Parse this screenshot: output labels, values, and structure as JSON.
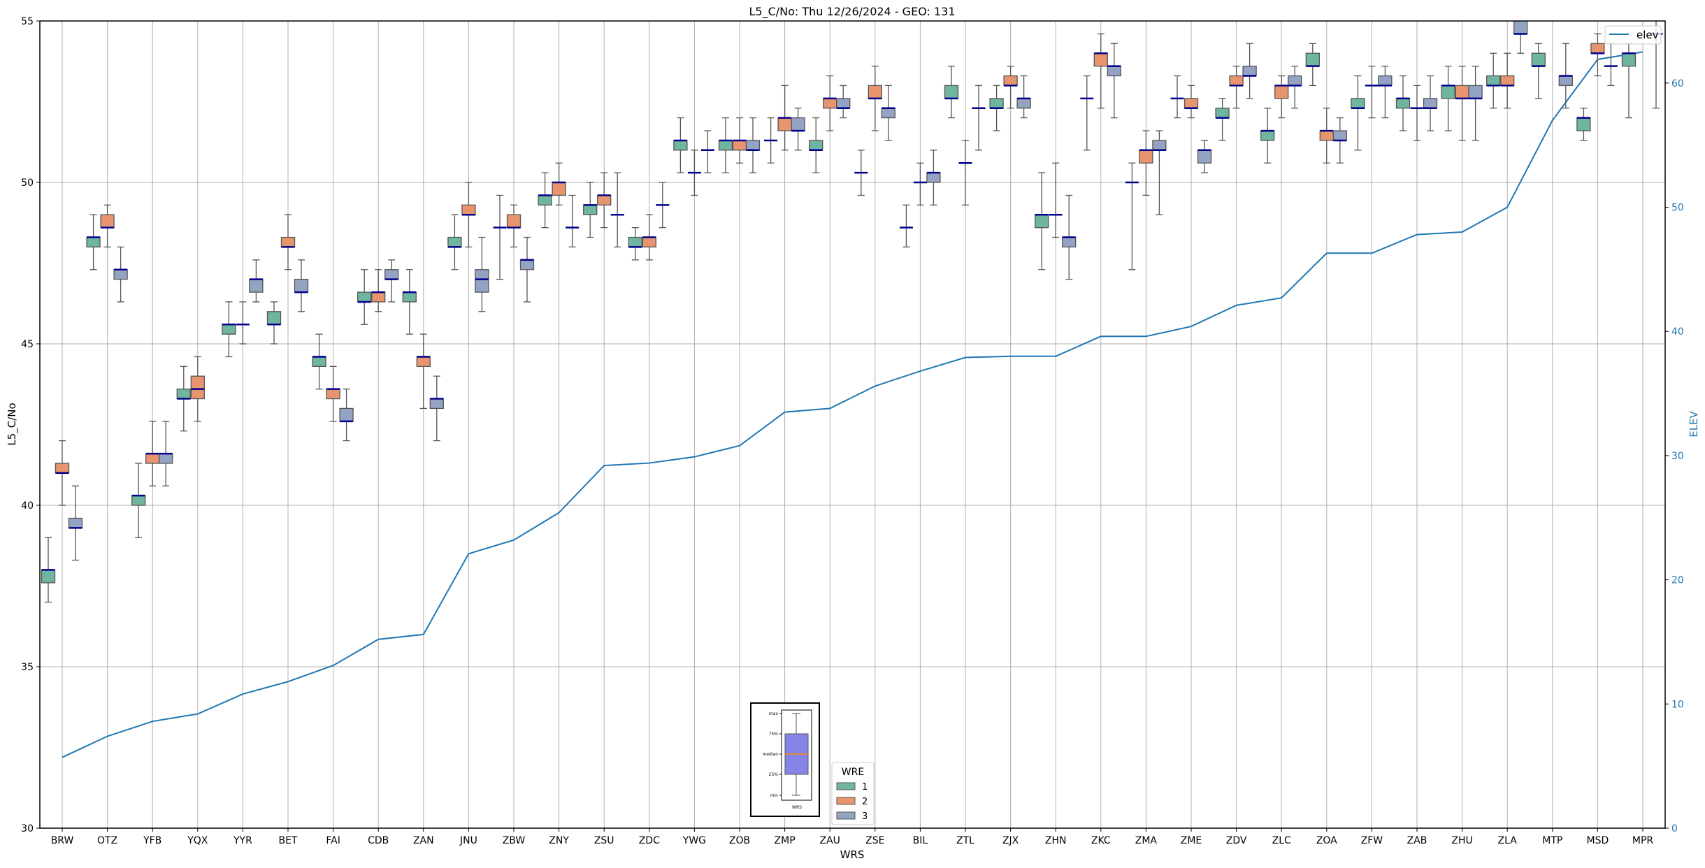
{
  "chart_data": {
    "type": "box",
    "title": "L5_C/No: Thu 12/26/2024 - GEO: 131",
    "xlabel": "WRS",
    "ylabel": "L5_C/No",
    "y2label": "ELEV",
    "ylim": [
      30,
      55
    ],
    "y2lim": [
      0,
      64
    ],
    "y_ticks": [
      "30",
      "35",
      "40",
      "45",
      "50",
      "55"
    ],
    "y2_ticks": [
      "0",
      "10",
      "20",
      "30",
      "40",
      "50",
      "60"
    ],
    "grid": true,
    "categories": [
      "BRW",
      "OTZ",
      "YFB",
      "YQX",
      "YYR",
      "BET",
      "FAI",
      "CDB",
      "ZAN",
      "JNU",
      "ZBW",
      "ZNY",
      "ZSU",
      "ZDC",
      "YWG",
      "ZOB",
      "ZMP",
      "ZAU",
      "ZSE",
      "BIL",
      "ZTL",
      "ZJX",
      "ZHN",
      "ZKC",
      "ZMA",
      "ZME",
      "ZDV",
      "ZLC",
      "ZOA",
      "ZFW",
      "ZAB",
      "ZHU",
      "ZLA",
      "MTP",
      "MSD",
      "MPR"
    ],
    "box_fields": [
      "wre",
      "min",
      "q1",
      "median",
      "q3",
      "max"
    ],
    "boxes": [
      [
        [
          1,
          37.0,
          37.6,
          38.0,
          38.0,
          39.0
        ],
        [
          2,
          40.0,
          41.0,
          41.0,
          41.3,
          42.0
        ],
        [
          3,
          38.3,
          39.3,
          39.3,
          39.6,
          40.6
        ]
      ],
      [
        [
          1,
          47.3,
          48.0,
          48.3,
          48.3,
          49.0
        ],
        [
          2,
          48.0,
          48.6,
          48.6,
          49.0,
          49.3
        ],
        [
          3,
          46.3,
          47.0,
          47.3,
          47.3,
          48.0
        ]
      ],
      [
        [
          1,
          39.0,
          40.0,
          40.3,
          40.3,
          41.3
        ],
        [
          2,
          40.6,
          41.3,
          41.6,
          41.6,
          42.6
        ],
        [
          3,
          40.6,
          41.3,
          41.6,
          41.6,
          42.6
        ]
      ],
      [
        [
          1,
          42.3,
          43.3,
          43.3,
          43.6,
          44.3
        ],
        [
          2,
          42.6,
          43.3,
          43.6,
          44.0,
          44.6
        ]
      ],
      [
        [
          1,
          44.6,
          45.3,
          45.6,
          45.6,
          46.3
        ],
        [
          2,
          45.0,
          45.6,
          45.6,
          45.6,
          46.3
        ],
        [
          3,
          46.3,
          46.6,
          47.0,
          47.0,
          47.6
        ]
      ],
      [
        [
          1,
          45.0,
          45.6,
          45.6,
          46.0,
          46.3
        ],
        [
          2,
          47.3,
          48.0,
          48.0,
          48.3,
          49.0
        ],
        [
          3,
          46.0,
          46.6,
          46.6,
          47.0,
          47.6
        ]
      ],
      [
        [
          1,
          43.6,
          44.3,
          44.6,
          44.6,
          45.3
        ],
        [
          2,
          42.6,
          43.3,
          43.6,
          43.6,
          44.3
        ],
        [
          3,
          42.0,
          42.6,
          42.6,
          43.0,
          43.6
        ]
      ],
      [
        [
          1,
          45.6,
          46.3,
          46.3,
          46.6,
          47.3
        ],
        [
          2,
          46.0,
          46.3,
          46.6,
          46.6,
          47.3
        ],
        [
          3,
          46.3,
          47.0,
          47.0,
          47.3,
          47.6
        ]
      ],
      [
        [
          1,
          45.3,
          46.3,
          46.6,
          46.6,
          47.3
        ],
        [
          2,
          43.0,
          44.3,
          44.6,
          44.6,
          45.3
        ],
        [
          3,
          42.0,
          43.0,
          43.3,
          43.3,
          44.0
        ]
      ],
      [
        [
          1,
          47.3,
          48.0,
          48.0,
          48.3,
          49.0
        ],
        [
          2,
          48.0,
          49.0,
          49.0,
          49.3,
          50.0
        ],
        [
          3,
          46.0,
          46.6,
          47.0,
          47.3,
          48.3
        ]
      ],
      [
        [
          1,
          47.0,
          48.6,
          48.6,
          48.6,
          49.6
        ],
        [
          2,
          48.0,
          48.6,
          48.6,
          49.0,
          49.3
        ],
        [
          3,
          46.3,
          47.3,
          47.6,
          47.6,
          48.3
        ]
      ],
      [
        [
          1,
          48.6,
          49.3,
          49.6,
          49.6,
          50.3
        ],
        [
          2,
          49.3,
          49.6,
          50.0,
          50.0,
          50.6
        ],
        [
          3,
          48.0,
          48.6,
          48.6,
          48.6,
          49.6
        ]
      ],
      [
        [
          1,
          48.3,
          49.0,
          49.3,
          49.3,
          50.0
        ],
        [
          2,
          48.6,
          49.3,
          49.6,
          49.6,
          50.3
        ],
        [
          3,
          48.0,
          49.0,
          49.0,
          49.0,
          50.3
        ]
      ],
      [
        [
          1,
          47.6,
          48.0,
          48.0,
          48.3,
          48.6
        ],
        [
          2,
          47.6,
          48.0,
          48.3,
          48.3,
          49.0
        ],
        [
          3,
          48.6,
          49.3,
          49.3,
          49.3,
          50.0
        ]
      ],
      [
        [
          1,
          50.3,
          51.0,
          51.3,
          51.3,
          52.0
        ],
        [
          2,
          49.6,
          50.3,
          50.3,
          50.3,
          51.0
        ],
        [
          3,
          50.3,
          51.0,
          51.0,
          51.0,
          51.6
        ]
      ],
      [
        [
          1,
          50.3,
          51.0,
          51.3,
          51.3,
          52.0
        ],
        [
          2,
          50.6,
          51.0,
          51.3,
          51.3,
          52.0
        ],
        [
          3,
          50.3,
          51.0,
          51.0,
          51.3,
          52.0
        ]
      ],
      [
        [
          1,
          50.6,
          51.3,
          51.3,
          51.3,
          52.0
        ],
        [
          2,
          51.0,
          51.6,
          52.0,
          52.0,
          53.0
        ],
        [
          3,
          51.0,
          51.6,
          51.6,
          52.0,
          52.3
        ]
      ],
      [
        [
          1,
          50.3,
          51.0,
          51.0,
          51.3,
          52.0
        ],
        [
          2,
          51.6,
          52.3,
          52.6,
          52.6,
          53.3
        ],
        [
          3,
          52.0,
          52.3,
          52.3,
          52.6,
          53.0
        ]
      ],
      [
        [
          1,
          49.6,
          50.3,
          50.3,
          50.3,
          51.0
        ],
        [
          2,
          51.6,
          52.6,
          52.6,
          53.0,
          53.6
        ],
        [
          3,
          51.3,
          52.0,
          52.3,
          52.3,
          53.0
        ]
      ],
      [
        [
          1,
          48.0,
          48.6,
          48.6,
          48.6,
          49.3
        ],
        [
          2,
          49.3,
          50.0,
          50.0,
          50.0,
          50.6
        ],
        [
          3,
          49.3,
          50.0,
          50.3,
          50.3,
          51.0
        ]
      ],
      [
        [
          1,
          52.0,
          52.6,
          52.6,
          53.0,
          53.6
        ],
        [
          2,
          49.3,
          50.6,
          50.6,
          50.6,
          51.3
        ],
        [
          3,
          51.0,
          52.3,
          52.3,
          52.3,
          53.0
        ]
      ],
      [
        [
          1,
          51.6,
          52.3,
          52.3,
          52.6,
          53.0
        ],
        [
          2,
          52.3,
          53.0,
          53.0,
          53.3,
          53.6
        ],
        [
          3,
          52.0,
          52.3,
          52.6,
          52.6,
          53.3
        ]
      ],
      [
        [
          1,
          47.3,
          48.6,
          49.0,
          49.0,
          50.3
        ],
        [
          2,
          48.3,
          49.0,
          49.0,
          49.0,
          50.6
        ],
        [
          3,
          47.0,
          48.0,
          48.3,
          48.3,
          49.6
        ]
      ],
      [
        [
          1,
          51.0,
          52.6,
          52.6,
          52.6,
          53.3
        ],
        [
          2,
          52.3,
          53.6,
          54.0,
          54.0,
          54.6
        ],
        [
          3,
          52.0,
          53.3,
          53.6,
          53.6,
          54.3
        ]
      ],
      [
        [
          1,
          47.3,
          50.0,
          50.0,
          50.0,
          50.6
        ],
        [
          2,
          49.6,
          50.6,
          51.0,
          51.0,
          51.6
        ],
        [
          3,
          49.0,
          51.0,
          51.0,
          51.3,
          51.6
        ]
      ],
      [
        [
          1,
          52.0,
          52.6,
          52.6,
          52.6,
          53.3
        ],
        [
          2,
          52.0,
          52.3,
          52.3,
          52.6,
          53.0
        ],
        [
          3,
          50.3,
          50.6,
          51.0,
          51.0,
          51.3
        ]
      ],
      [
        [
          1,
          51.3,
          52.0,
          52.0,
          52.3,
          52.6
        ],
        [
          2,
          52.3,
          53.0,
          53.0,
          53.3,
          53.6
        ],
        [
          3,
          52.6,
          53.3,
          53.3,
          53.6,
          54.3
        ]
      ],
      [
        [
          1,
          50.6,
          51.3,
          51.6,
          51.6,
          52.3
        ],
        [
          2,
          52.0,
          52.6,
          53.0,
          53.0,
          53.3
        ],
        [
          3,
          52.3,
          53.0,
          53.0,
          53.3,
          53.6
        ]
      ],
      [
        [
          1,
          53.0,
          53.6,
          53.6,
          54.0,
          54.3
        ],
        [
          2,
          50.6,
          51.3,
          51.6,
          51.6,
          52.3
        ],
        [
          3,
          50.6,
          51.3,
          51.3,
          51.6,
          52.0
        ]
      ],
      [
        [
          1,
          51.0,
          52.3,
          52.3,
          52.6,
          53.3
        ],
        [
          2,
          52.0,
          53.0,
          53.0,
          53.0,
          53.6
        ],
        [
          3,
          52.0,
          53.0,
          53.0,
          53.3,
          53.6
        ]
      ],
      [
        [
          1,
          51.6,
          52.3,
          52.6,
          52.6,
          53.3
        ],
        [
          2,
          51.3,
          52.3,
          52.3,
          52.3,
          53.0
        ],
        [
          3,
          51.6,
          52.3,
          52.3,
          52.6,
          53.3
        ]
      ],
      [
        [
          1,
          51.6,
          52.6,
          53.0,
          53.0,
          53.6
        ],
        [
          2,
          51.3,
          52.6,
          52.6,
          53.0,
          53.6
        ],
        [
          3,
          51.3,
          52.6,
          52.6,
          53.0,
          53.6
        ]
      ],
      [
        [
          1,
          52.3,
          53.0,
          53.0,
          53.3,
          54.0
        ],
        [
          2,
          52.3,
          53.0,
          53.0,
          53.3,
          54.0
        ],
        [
          3,
          54.0,
          54.6,
          54.6,
          55.3,
          56.0
        ]
      ],
      [
        [
          1,
          52.6,
          53.6,
          53.6,
          54.0,
          54.3
        ],
        [
          3,
          52.3,
          53.0,
          53.3,
          53.3,
          54.3
        ]
      ],
      [
        [
          1,
          51.3,
          51.6,
          52.0,
          52.0,
          52.3
        ],
        [
          2,
          53.3,
          54.0,
          54.0,
          54.3,
          54.6
        ],
        [
          3,
          53.0,
          53.6,
          53.6,
          53.6,
          54.3
        ]
      ],
      [
        [
          1,
          52.0,
          53.6,
          54.0,
          54.0,
          54.3
        ],
        [
          3,
          52.3,
          54.6,
          54.6,
          54.6,
          55.3
        ]
      ]
    ],
    "elev": {
      "name": "elev",
      "values": [
        5.7,
        7.4,
        8.6,
        9.2,
        10.8,
        11.8,
        13.1,
        15.2,
        15.6,
        22.1,
        23.2,
        25.4,
        29.2,
        29.4,
        29.9,
        30.8,
        33.5,
        33.8,
        35.6,
        36.8,
        37.9,
        38.0,
        38.0,
        39.6,
        39.6,
        40.4,
        42.1,
        42.7,
        46.3,
        46.3,
        47.8,
        48.0,
        50.0,
        57.0,
        61.9,
        62.5
      ]
    },
    "legend_wre": {
      "title": "WRE",
      "entries": [
        "1",
        "2",
        "3"
      ],
      "placement": "bottom-center"
    },
    "legend_elev": {
      "label": "elev",
      "placement": "top-right"
    },
    "inset_key": {
      "labels": [
        "max",
        "75%",
        "median",
        "25%",
        "min"
      ],
      "xlabel": "WRS"
    },
    "colors": {
      "wre1": "#6fb5a0",
      "wre2": "#e8956f",
      "wre3": "#94a3c3",
      "median": "#00008b",
      "elev": "#1f77b4",
      "grid": "#b0b0b0",
      "inset_box": "#8585e8",
      "inset_median": "#ff8c00"
    }
  }
}
